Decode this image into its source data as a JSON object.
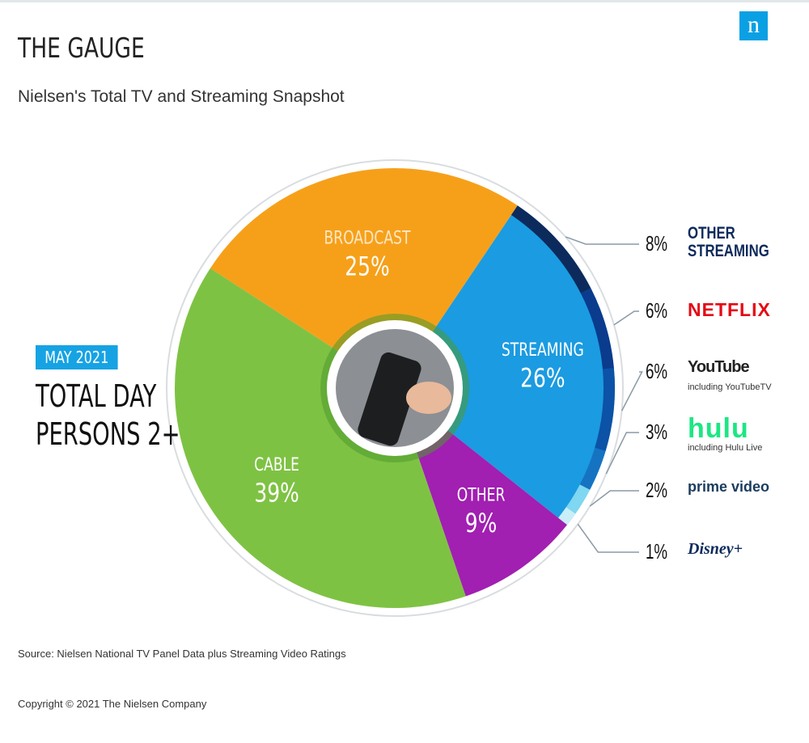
{
  "logo": "n",
  "chart_data": {
    "type": "pie",
    "title": "THE GAUGE",
    "subtitle": "Nielsen's Total TV and Streaming Snapshot",
    "categories": [
      "BROADCAST",
      "STREAMING",
      "OTHER",
      "CABLE"
    ],
    "values": [
      25,
      26,
      9,
      39
    ],
    "value_labels": [
      "25%",
      "26%",
      "9%",
      "39%"
    ],
    "colors": [
      "#f6a01a",
      "#1b9be1",
      "#a11fb1",
      "#7ec243"
    ],
    "streaming_breakdown": [
      {
        "name": "OTHER STREAMING",
        "value": 8,
        "value_label": "8%",
        "color": "#0d2a5c"
      },
      {
        "name": "NETFLIX",
        "value": 6,
        "value_label": "6%",
        "color": "#0a3b8d"
      },
      {
        "name": "YouTube",
        "note": "including YouTubeTV",
        "value": 6,
        "value_label": "6%",
        "color": "#0c52a6"
      },
      {
        "name": "hulu",
        "note": "including Hulu Live",
        "value": 3,
        "value_label": "3%",
        "color": "#1573c2"
      },
      {
        "name": "prime video",
        "value": 2,
        "value_label": "2%",
        "color": "#7fd7f1"
      },
      {
        "name": "Disney+",
        "value": 1,
        "value_label": "1%",
        "color": "#c9eef8"
      }
    ],
    "annotations": [
      "MAY 2021",
      "TOTAL DAY",
      "PERSONS 2+"
    ],
    "source": "Source: Nielsen National TV Panel Data plus Streaming Video Ratings",
    "copyright": "Copyright © 2021 The Nielsen Company"
  }
}
